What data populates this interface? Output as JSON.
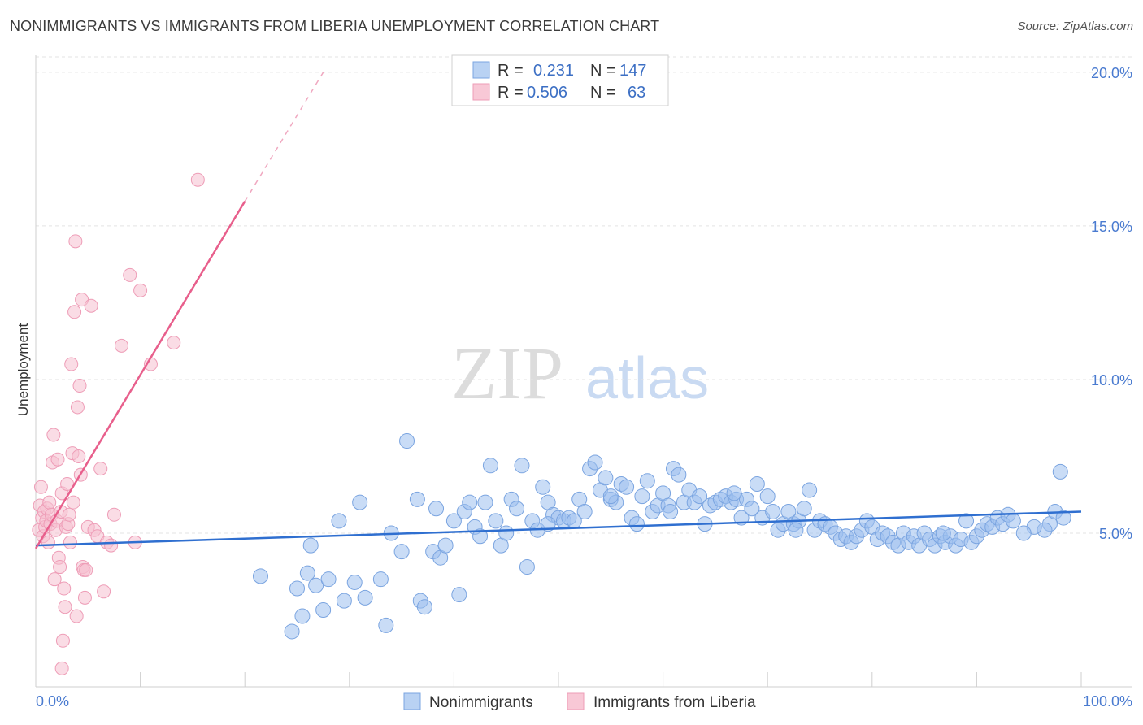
{
  "title": "NONIMMIGRANTS VS IMMIGRANTS FROM LIBERIA UNEMPLOYMENT CORRELATION CHART",
  "source": "Source: ZipAtlas.com",
  "watermark": {
    "zip": "ZIP",
    "atlas": "atlas"
  },
  "chart_data": {
    "type": "scatter",
    "ylabel": "Unemployment",
    "xlim": [
      0,
      100
    ],
    "ylim": [
      0,
      20.5
    ],
    "x_tick_labels": [
      "0.0%",
      "100.0%"
    ],
    "y_ticks": [
      5,
      10,
      15,
      20
    ],
    "y_tick_labels": [
      "5.0%",
      "10.0%",
      "15.0%",
      "20.0%"
    ],
    "legend": [
      {
        "r_label": "R =",
        "r_value": "0.231",
        "n_label": "N =",
        "n_value": "147"
      },
      {
        "r_label": "R =",
        "r_value": "0.506",
        "n_label": "N =",
        "n_value": "63"
      }
    ],
    "series": [
      {
        "name": "Nonimmigrants",
        "color": "#9cc0ee",
        "stroke": "#7aa4e0",
        "trend": {
          "x0": 0,
          "y0": 4.6,
          "x1": 100,
          "y1": 5.7,
          "color": "#2f6fd0"
        },
        "points": [
          [
            21.5,
            3.6
          ],
          [
            24.5,
            1.8
          ],
          [
            25,
            3.2
          ],
          [
            25.5,
            2.3
          ],
          [
            26,
            3.7
          ],
          [
            26.3,
            4.6
          ],
          [
            26.8,
            3.3
          ],
          [
            27.5,
            2.5
          ],
          [
            28,
            3.5
          ],
          [
            29,
            5.4
          ],
          [
            29.5,
            2.8
          ],
          [
            30.5,
            3.4
          ],
          [
            31,
            6
          ],
          [
            31.5,
            2.9
          ],
          [
            33,
            3.5
          ],
          [
            34,
            5
          ],
          [
            35,
            4.4
          ],
          [
            35.5,
            8
          ],
          [
            36.5,
            6.1
          ],
          [
            36.8,
            2.8
          ],
          [
            37.2,
            2.6
          ],
          [
            38,
            4.4
          ],
          [
            38.3,
            5.8
          ],
          [
            38.7,
            4.2
          ],
          [
            39.2,
            4.6
          ],
          [
            40,
            5.4
          ],
          [
            40.5,
            3
          ],
          [
            41,
            5.7
          ],
          [
            41.5,
            6
          ],
          [
            42,
            5.2
          ],
          [
            42.5,
            4.9
          ],
          [
            43,
            6
          ],
          [
            43.5,
            7.2
          ],
          [
            44,
            5.4
          ],
          [
            44.5,
            4.6
          ],
          [
            45,
            5
          ],
          [
            45.5,
            6.1
          ],
          [
            46,
            5.8
          ],
          [
            46.5,
            7.2
          ],
          [
            47,
            3.9
          ],
          [
            47.5,
            5.4
          ],
          [
            48,
            5.1
          ],
          [
            48.5,
            6.5
          ],
          [
            49,
            6
          ],
          [
            49.5,
            5.6
          ],
          [
            50,
            5.5
          ],
          [
            50.5,
            5.4
          ],
          [
            51,
            5.5
          ],
          [
            51.5,
            5.4
          ],
          [
            52,
            6.1
          ],
          [
            52.5,
            5.7
          ],
          [
            53,
            7.1
          ],
          [
            53.5,
            7.3
          ],
          [
            54,
            6.4
          ],
          [
            54.5,
            6.8
          ],
          [
            55,
            6.1
          ],
          [
            55.5,
            6
          ],
          [
            56,
            6.6
          ],
          [
            56.5,
            6.5
          ],
          [
            57,
            5.5
          ],
          [
            57.5,
            5.3
          ],
          [
            58,
            6.2
          ],
          [
            58.5,
            6.7
          ],
          [
            59,
            5.7
          ],
          [
            59.5,
            5.9
          ],
          [
            60,
            6.3
          ],
          [
            60.5,
            5.9
          ],
          [
            61,
            7.1
          ],
          [
            61.5,
            6.9
          ],
          [
            62,
            6
          ],
          [
            62.5,
            6.4
          ],
          [
            63,
            6
          ],
          [
            63.5,
            6.2
          ],
          [
            64,
            5.3
          ],
          [
            64.5,
            5.9
          ],
          [
            65,
            6
          ],
          [
            65.5,
            6.1
          ],
          [
            66,
            6.2
          ],
          [
            66.5,
            6
          ],
          [
            67,
            6.1
          ],
          [
            67.5,
            5.5
          ],
          [
            68,
            6.1
          ],
          [
            68.5,
            5.8
          ],
          [
            69,
            6.6
          ],
          [
            69.5,
            5.5
          ],
          [
            70,
            6.2
          ],
          [
            70.5,
            5.7
          ],
          [
            71,
            5.1
          ],
          [
            71.5,
            5.3
          ],
          [
            72,
            5.7
          ],
          [
            72.5,
            5.3
          ],
          [
            73,
            5.4
          ],
          [
            73.5,
            5.8
          ],
          [
            74,
            6.4
          ],
          [
            74.5,
            5.1
          ],
          [
            75,
            5.4
          ],
          [
            75.5,
            5.3
          ],
          [
            76,
            5.2
          ],
          [
            76.5,
            5
          ],
          [
            77,
            4.8
          ],
          [
            77.5,
            4.9
          ],
          [
            78,
            4.7
          ],
          [
            78.5,
            4.9
          ],
          [
            79,
            5.1
          ],
          [
            79.5,
            5.4
          ],
          [
            80,
            5.2
          ],
          [
            80.5,
            4.8
          ],
          [
            81,
            5
          ],
          [
            81.5,
            4.9
          ],
          [
            82,
            4.7
          ],
          [
            82.5,
            4.6
          ],
          [
            83,
            5
          ],
          [
            83.5,
            4.7
          ],
          [
            84,
            4.9
          ],
          [
            84.5,
            4.6
          ],
          [
            85,
            5
          ],
          [
            85.5,
            4.8
          ],
          [
            86,
            4.6
          ],
          [
            86.5,
            4.9
          ],
          [
            87,
            4.7
          ],
          [
            87.5,
            4.9
          ],
          [
            88,
            4.6
          ],
          [
            88.5,
            4.8
          ],
          [
            89,
            5.4
          ],
          [
            89.5,
            4.7
          ],
          [
            90,
            4.9
          ],
          [
            90.5,
            5.1
          ],
          [
            91,
            5.3
          ],
          [
            91.5,
            5.2
          ],
          [
            92,
            5.5
          ],
          [
            92.5,
            5.3
          ],
          [
            93,
            5.6
          ],
          [
            93.5,
            5.4
          ],
          [
            97,
            5.3
          ],
          [
            97.5,
            5.7
          ],
          [
            98,
            7
          ],
          [
            98.3,
            5.5
          ],
          [
            96.5,
            5.1
          ],
          [
            95.5,
            5.2
          ],
          [
            94.5,
            5
          ],
          [
            33.5,
            2
          ],
          [
            49,
            5.3
          ],
          [
            55,
            6.2
          ],
          [
            60.7,
            5.7
          ],
          [
            66.8,
            6.3
          ],
          [
            72.7,
            5.1
          ],
          [
            86.8,
            5
          ]
        ]
      },
      {
        "name": "Immigrants from Liberia",
        "color": "#f6bfd0",
        "stroke": "#ee9db7",
        "trend": {
          "x0": 0,
          "y0": 4.5,
          "x1": 20,
          "y1": 15.8,
          "dash_x1": 27.5,
          "dash_y1": 20,
          "color": "#e85f8c"
        },
        "points": [
          [
            0.3,
            5.1
          ],
          [
            0.4,
            5.9
          ],
          [
            0.5,
            6.5
          ],
          [
            0.6,
            5.5
          ],
          [
            0.7,
            4.9
          ],
          [
            0.8,
            5.7
          ],
          [
            0.9,
            5.2
          ],
          [
            1,
            5.4
          ],
          [
            1.1,
            5.8
          ],
          [
            1.2,
            4.7
          ],
          [
            1.3,
            6
          ],
          [
            1.4,
            5.3
          ],
          [
            1.5,
            5.6
          ],
          [
            1.6,
            7.3
          ],
          [
            1.7,
            8.2
          ],
          [
            1.8,
            3.5
          ],
          [
            1.9,
            5.1
          ],
          [
            2,
            5.4
          ],
          [
            2.1,
            7.4
          ],
          [
            2.2,
            4.2
          ],
          [
            2.3,
            3.9
          ],
          [
            2.4,
            5.7
          ],
          [
            2.5,
            6.3
          ],
          [
            2.6,
            1.5
          ],
          [
            2.7,
            3.2
          ],
          [
            2.8,
            2.6
          ],
          [
            2.9,
            5.2
          ],
          [
            3,
            6.6
          ],
          [
            3.1,
            5.3
          ],
          [
            3.2,
            5.6
          ],
          [
            3.3,
            4.7
          ],
          [
            3.4,
            10.5
          ],
          [
            3.5,
            7.6
          ],
          [
            3.6,
            6
          ],
          [
            3.7,
            12.2
          ],
          [
            3.8,
            14.5
          ],
          [
            3.9,
            2.3
          ],
          [
            4,
            9.1
          ],
          [
            4.1,
            7.5
          ],
          [
            4.2,
            9.8
          ],
          [
            4.3,
            6.9
          ],
          [
            4.4,
            12.6
          ],
          [
            4.5,
            3.9
          ],
          [
            4.6,
            3.8
          ],
          [
            4.7,
            2.9
          ],
          [
            4.8,
            3.8
          ],
          [
            5,
            5.2
          ],
          [
            5.3,
            12.4
          ],
          [
            5.6,
            5.1
          ],
          [
            5.9,
            4.9
          ],
          [
            6.2,
            7.1
          ],
          [
            6.5,
            3.1
          ],
          [
            6.8,
            4.7
          ],
          [
            7.2,
            4.6
          ],
          [
            7.5,
            5.6
          ],
          [
            8.2,
            11.1
          ],
          [
            9,
            13.4
          ],
          [
            9.5,
            4.7
          ],
          [
            10,
            12.9
          ],
          [
            11,
            10.5
          ],
          [
            13.2,
            11.2
          ],
          [
            15.5,
            16.5
          ],
          [
            2.5,
            0.6
          ]
        ]
      }
    ]
  }
}
